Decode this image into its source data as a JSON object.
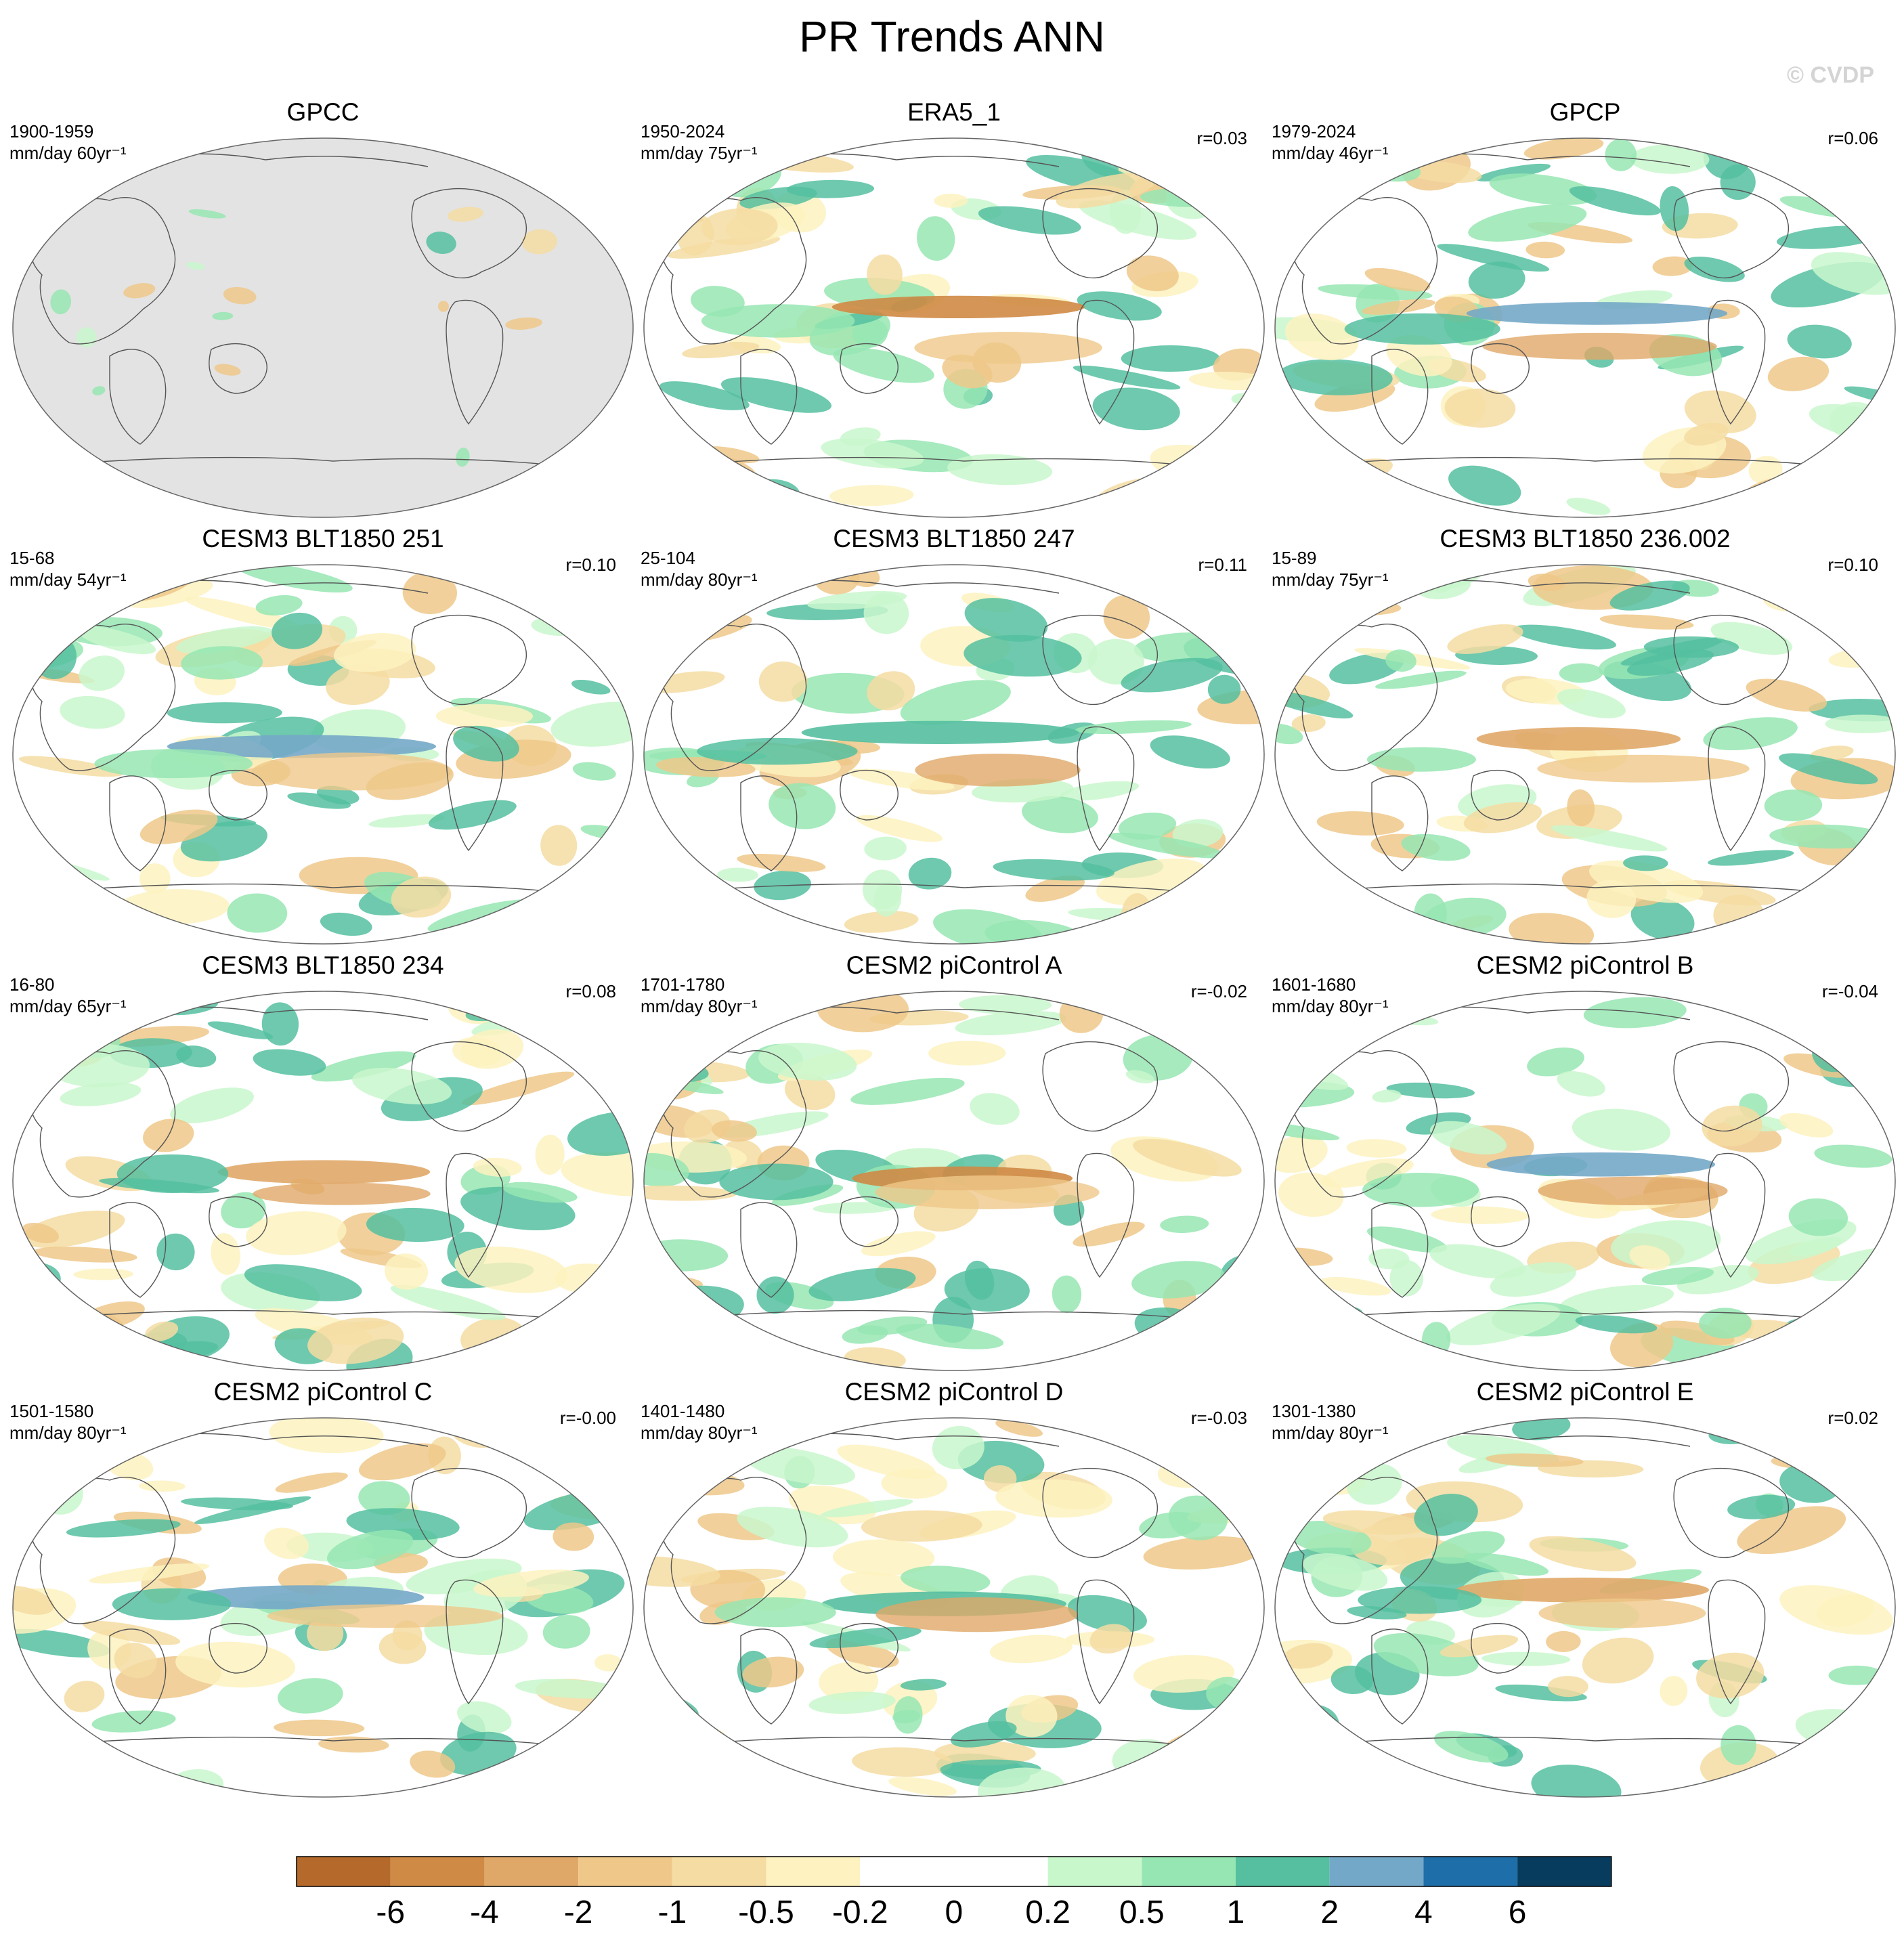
{
  "figure": {
    "title": "PR Trends ANN",
    "watermark": "© CVDP"
  },
  "panels": [
    {
      "title": "GPCC",
      "period": "1900-1959",
      "units": "mm/day 60yr⁻¹",
      "r": "",
      "gray_ocean": true
    },
    {
      "title": "ERA5_1",
      "period": "1950-2024",
      "units": "mm/day 75yr⁻¹",
      "r": "r=0.03",
      "gray_ocean": false
    },
    {
      "title": "GPCP",
      "period": "1979-2024",
      "units": "mm/day 46yr⁻¹",
      "r": "r=0.06",
      "gray_ocean": false
    },
    {
      "title": "CESM3 BLT1850 251",
      "period": "15-68",
      "units": "mm/day 54yr⁻¹",
      "r": "r=0.10",
      "gray_ocean": false
    },
    {
      "title": "CESM3 BLT1850 247",
      "period": "25-104",
      "units": "mm/day 80yr⁻¹",
      "r": "r=0.11",
      "gray_ocean": false
    },
    {
      "title": "CESM3 BLT1850 236.002",
      "period": "15-89",
      "units": "mm/day 75yr⁻¹",
      "r": "r=0.10",
      "gray_ocean": false
    },
    {
      "title": "CESM3 BLT1850 234",
      "period": "16-80",
      "units": "mm/day 65yr⁻¹",
      "r": "r=0.08",
      "gray_ocean": false
    },
    {
      "title": "CESM2 piControl A",
      "period": "1701-1780",
      "units": "mm/day 80yr⁻¹",
      "r": "r=-0.02",
      "gray_ocean": false
    },
    {
      "title": "CESM2 piControl B",
      "period": "1601-1680",
      "units": "mm/day 80yr⁻¹",
      "r": "r=-0.04",
      "gray_ocean": false
    },
    {
      "title": "CESM2 piControl C",
      "period": "1501-1580",
      "units": "mm/day 80yr⁻¹",
      "r": "r=-0.00",
      "gray_ocean": false
    },
    {
      "title": "CESM2 piControl D",
      "period": "1401-1480",
      "units": "mm/day 80yr⁻¹",
      "r": "r=-0.03",
      "gray_ocean": false
    },
    {
      "title": "CESM2 piControl E",
      "period": "1301-1380",
      "units": "mm/day 80yr⁻¹",
      "r": "r=0.02",
      "gray_ocean": false
    }
  ],
  "colorbar": {
    "labels": [
      "-6",
      "-4",
      "-2",
      "-1",
      "-0.5",
      "-0.2",
      "0",
      "0.2",
      "0.5",
      "1",
      "2",
      "4",
      "6"
    ],
    "colors": [
      "#b5692b",
      "#cf8a45",
      "#e0a868",
      "#efc889",
      "#f5dca2",
      "#fdf2c0",
      "#ffffff",
      "#ffffff",
      "#c9f7cc",
      "#96e6b3",
      "#55bfa0",
      "#74a8c8",
      "#1e6ea9",
      "#083c5e"
    ],
    "gray_ocean_color": "#e3e3e3"
  }
}
